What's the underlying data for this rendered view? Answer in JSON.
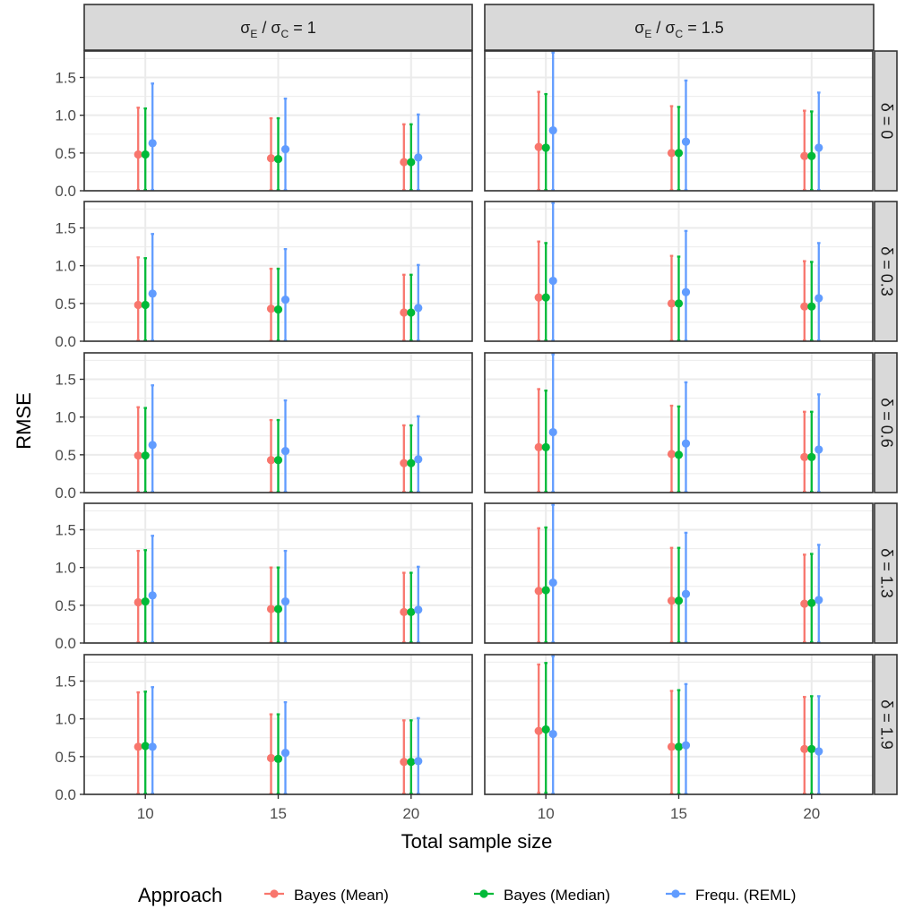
{
  "chart_data": {
    "type": "point",
    "subtype": "faceted point with error bars (mean and range)",
    "ylabel": "RMSE",
    "xlabel": "Total sample size",
    "x_ticks": [
      "10",
      "15",
      "20"
    ],
    "y_ticks": [
      "0.0",
      "0.5",
      "1.0",
      "1.5"
    ],
    "ylim": [
      0,
      1.85
    ],
    "grid": true,
    "legend": {
      "title": "Approach",
      "position": "bottom",
      "entries": [
        {
          "name": "Bayes (Mean)",
          "color": "#F8766D"
        },
        {
          "name": "Bayes (Median)",
          "color": "#00BA38"
        },
        {
          "name": "Frequ. (REML)",
          "color": "#619CFF"
        }
      ]
    },
    "col_facets": [
      {
        "base": "σ",
        "sub1": "E",
        "mid": " / ",
        "sub2": "C",
        "rest": " = 1"
      },
      {
        "base": "σ",
        "sub1": "E",
        "mid": " / ",
        "sub2": "C",
        "rest": " = 1.5"
      }
    ],
    "row_facets": [
      "δ = 0",
      "δ = 0.3",
      "δ = 0.6",
      "δ = 1.3",
      "δ = 1.9"
    ],
    "panels": [
      [
        {
          "series": [
            {
              "name": "Bayes (Mean)",
              "points": [
                {
                  "x": 10,
                  "y": 0.48,
                  "low": 0.01,
                  "high": 1.1
                },
                {
                  "x": 15,
                  "y": 0.43,
                  "low": 0.01,
                  "high": 0.96
                },
                {
                  "x": 20,
                  "y": 0.38,
                  "low": 0.01,
                  "high": 0.88
                }
              ]
            },
            {
              "name": "Bayes (Median)",
              "points": [
                {
                  "x": 10,
                  "y": 0.48,
                  "low": 0.01,
                  "high": 1.09
                },
                {
                  "x": 15,
                  "y": 0.42,
                  "low": 0.01,
                  "high": 0.96
                },
                {
                  "x": 20,
                  "y": 0.38,
                  "low": 0.01,
                  "high": 0.88
                }
              ]
            },
            {
              "name": "Frequ. (REML)",
              "points": [
                {
                  "x": 10,
                  "y": 0.63,
                  "low": 0.01,
                  "high": 1.42
                },
                {
                  "x": 15,
                  "y": 0.55,
                  "low": 0.01,
                  "high": 1.22
                },
                {
                  "x": 20,
                  "y": 0.44,
                  "low": 0.01,
                  "high": 1.01
                }
              ]
            }
          ]
        },
        {
          "series": [
            {
              "name": "Bayes (Mean)",
              "points": [
                {
                  "x": 10,
                  "y": 0.48,
                  "low": 0.01,
                  "high": 1.11
                },
                {
                  "x": 15,
                  "y": 0.43,
                  "low": 0.01,
                  "high": 0.96
                },
                {
                  "x": 20,
                  "y": 0.38,
                  "low": 0.01,
                  "high": 0.88
                }
              ]
            },
            {
              "name": "Bayes (Median)",
              "points": [
                {
                  "x": 10,
                  "y": 0.48,
                  "low": 0.01,
                  "high": 1.1
                },
                {
                  "x": 15,
                  "y": 0.42,
                  "low": 0.01,
                  "high": 0.96
                },
                {
                  "x": 20,
                  "y": 0.38,
                  "low": 0.01,
                  "high": 0.88
                }
              ]
            },
            {
              "name": "Frequ. (REML)",
              "points": [
                {
                  "x": 10,
                  "y": 0.63,
                  "low": 0.01,
                  "high": 1.42
                },
                {
                  "x": 15,
                  "y": 0.55,
                  "low": 0.01,
                  "high": 1.22
                },
                {
                  "x": 20,
                  "y": 0.44,
                  "low": 0.01,
                  "high": 1.01
                }
              ]
            }
          ]
        },
        {
          "series": [
            {
              "name": "Bayes (Mean)",
              "points": [
                {
                  "x": 10,
                  "y": 0.49,
                  "low": 0.01,
                  "high": 1.13
                },
                {
                  "x": 15,
                  "y": 0.43,
                  "low": 0.01,
                  "high": 0.96
                },
                {
                  "x": 20,
                  "y": 0.39,
                  "low": 0.01,
                  "high": 0.89
                }
              ]
            },
            {
              "name": "Bayes (Median)",
              "points": [
                {
                  "x": 10,
                  "y": 0.49,
                  "low": 0.01,
                  "high": 1.12
                },
                {
                  "x": 15,
                  "y": 0.43,
                  "low": 0.01,
                  "high": 0.96
                },
                {
                  "x": 20,
                  "y": 0.39,
                  "low": 0.01,
                  "high": 0.89
                }
              ]
            },
            {
              "name": "Frequ. (REML)",
              "points": [
                {
                  "x": 10,
                  "y": 0.63,
                  "low": 0.01,
                  "high": 1.42
                },
                {
                  "x": 15,
                  "y": 0.55,
                  "low": 0.01,
                  "high": 1.22
                },
                {
                  "x": 20,
                  "y": 0.44,
                  "low": 0.01,
                  "high": 1.01
                }
              ]
            }
          ]
        },
        {
          "series": [
            {
              "name": "Bayes (Mean)",
              "points": [
                {
                  "x": 10,
                  "y": 0.54,
                  "low": 0.01,
                  "high": 1.22
                },
                {
                  "x": 15,
                  "y": 0.45,
                  "low": 0.01,
                  "high": 1.0
                },
                {
                  "x": 20,
                  "y": 0.41,
                  "low": 0.01,
                  "high": 0.93
                }
              ]
            },
            {
              "name": "Bayes (Median)",
              "points": [
                {
                  "x": 10,
                  "y": 0.55,
                  "low": 0.01,
                  "high": 1.23
                },
                {
                  "x": 15,
                  "y": 0.45,
                  "low": 0.01,
                  "high": 1.0
                },
                {
                  "x": 20,
                  "y": 0.41,
                  "low": 0.01,
                  "high": 0.93
                }
              ]
            },
            {
              "name": "Frequ. (REML)",
              "points": [
                {
                  "x": 10,
                  "y": 0.63,
                  "low": 0.01,
                  "high": 1.42
                },
                {
                  "x": 15,
                  "y": 0.55,
                  "low": 0.01,
                  "high": 1.22
                },
                {
                  "x": 20,
                  "y": 0.44,
                  "low": 0.01,
                  "high": 1.01
                }
              ]
            }
          ]
        },
        {
          "series": [
            {
              "name": "Bayes (Mean)",
              "points": [
                {
                  "x": 10,
                  "y": 0.63,
                  "low": 0.01,
                  "high": 1.35
                },
                {
                  "x": 15,
                  "y": 0.48,
                  "low": 0.01,
                  "high": 1.06
                },
                {
                  "x": 20,
                  "y": 0.43,
                  "low": 0.01,
                  "high": 0.98
                }
              ]
            },
            {
              "name": "Bayes (Median)",
              "points": [
                {
                  "x": 10,
                  "y": 0.64,
                  "low": 0.01,
                  "high": 1.36
                },
                {
                  "x": 15,
                  "y": 0.47,
                  "low": 0.01,
                  "high": 1.06
                },
                {
                  "x": 20,
                  "y": 0.43,
                  "low": 0.01,
                  "high": 0.98
                }
              ]
            },
            {
              "name": "Frequ. (REML)",
              "points": [
                {
                  "x": 10,
                  "y": 0.63,
                  "low": 0.01,
                  "high": 1.42
                },
                {
                  "x": 15,
                  "y": 0.55,
                  "low": 0.01,
                  "high": 1.22
                },
                {
                  "x": 20,
                  "y": 0.44,
                  "low": 0.01,
                  "high": 1.01
                }
              ]
            }
          ]
        }
      ],
      [
        {
          "series": [
            {
              "name": "Bayes (Mean)",
              "points": [
                {
                  "x": 10,
                  "y": 0.58,
                  "low": 0.01,
                  "high": 1.31
                },
                {
                  "x": 15,
                  "y": 0.5,
                  "low": 0.01,
                  "high": 1.12
                },
                {
                  "x": 20,
                  "y": 0.46,
                  "low": 0.01,
                  "high": 1.06
                }
              ]
            },
            {
              "name": "Bayes (Median)",
              "points": [
                {
                  "x": 10,
                  "y": 0.57,
                  "low": 0.01,
                  "high": 1.28
                },
                {
                  "x": 15,
                  "y": 0.5,
                  "low": 0.01,
                  "high": 1.11
                },
                {
                  "x": 20,
                  "y": 0.46,
                  "low": 0.01,
                  "high": 1.05
                }
              ]
            },
            {
              "name": "Frequ. (REML)",
              "points": [
                {
                  "x": 10,
                  "y": 0.8,
                  "low": 0.01,
                  "high": 1.83
                },
                {
                  "x": 15,
                  "y": 0.65,
                  "low": 0.01,
                  "high": 1.46
                },
                {
                  "x": 20,
                  "y": 0.57,
                  "low": 0.01,
                  "high": 1.3
                }
              ]
            }
          ]
        },
        {
          "series": [
            {
              "name": "Bayes (Mean)",
              "points": [
                {
                  "x": 10,
                  "y": 0.58,
                  "low": 0.01,
                  "high": 1.32
                },
                {
                  "x": 15,
                  "y": 0.5,
                  "low": 0.01,
                  "high": 1.13
                },
                {
                  "x": 20,
                  "y": 0.46,
                  "low": 0.01,
                  "high": 1.06
                }
              ]
            },
            {
              "name": "Bayes (Median)",
              "points": [
                {
                  "x": 10,
                  "y": 0.58,
                  "low": 0.01,
                  "high": 1.3
                },
                {
                  "x": 15,
                  "y": 0.5,
                  "low": 0.01,
                  "high": 1.12
                },
                {
                  "x": 20,
                  "y": 0.46,
                  "low": 0.01,
                  "high": 1.05
                }
              ]
            },
            {
              "name": "Frequ. (REML)",
              "points": [
                {
                  "x": 10,
                  "y": 0.8,
                  "low": 0.01,
                  "high": 1.83
                },
                {
                  "x": 15,
                  "y": 0.65,
                  "low": 0.01,
                  "high": 1.46
                },
                {
                  "x": 20,
                  "y": 0.57,
                  "low": 0.01,
                  "high": 1.3
                }
              ]
            }
          ]
        },
        {
          "series": [
            {
              "name": "Bayes (Mean)",
              "points": [
                {
                  "x": 10,
                  "y": 0.6,
                  "low": 0.01,
                  "high": 1.37
                },
                {
                  "x": 15,
                  "y": 0.51,
                  "low": 0.01,
                  "high": 1.15
                },
                {
                  "x": 20,
                  "y": 0.47,
                  "low": 0.01,
                  "high": 1.07
                }
              ]
            },
            {
              "name": "Bayes (Median)",
              "points": [
                {
                  "x": 10,
                  "y": 0.6,
                  "low": 0.01,
                  "high": 1.35
                },
                {
                  "x": 15,
                  "y": 0.5,
                  "low": 0.01,
                  "high": 1.14
                },
                {
                  "x": 20,
                  "y": 0.47,
                  "low": 0.01,
                  "high": 1.07
                }
              ]
            },
            {
              "name": "Frequ. (REML)",
              "points": [
                {
                  "x": 10,
                  "y": 0.8,
                  "low": 0.01,
                  "high": 1.83
                },
                {
                  "x": 15,
                  "y": 0.65,
                  "low": 0.01,
                  "high": 1.46
                },
                {
                  "x": 20,
                  "y": 0.57,
                  "low": 0.01,
                  "high": 1.3
                }
              ]
            }
          ]
        },
        {
          "series": [
            {
              "name": "Bayes (Mean)",
              "points": [
                {
                  "x": 10,
                  "y": 0.69,
                  "low": 0.01,
                  "high": 1.52
                },
                {
                  "x": 15,
                  "y": 0.56,
                  "low": 0.01,
                  "high": 1.26
                },
                {
                  "x": 20,
                  "y": 0.52,
                  "low": 0.01,
                  "high": 1.17
                }
              ]
            },
            {
              "name": "Bayes (Median)",
              "points": [
                {
                  "x": 10,
                  "y": 0.7,
                  "low": 0.01,
                  "high": 1.53
                },
                {
                  "x": 15,
                  "y": 0.56,
                  "low": 0.01,
                  "high": 1.26
                },
                {
                  "x": 20,
                  "y": 0.53,
                  "low": 0.01,
                  "high": 1.18
                }
              ]
            },
            {
              "name": "Frequ. (REML)",
              "points": [
                {
                  "x": 10,
                  "y": 0.8,
                  "low": 0.01,
                  "high": 1.83
                },
                {
                  "x": 15,
                  "y": 0.65,
                  "low": 0.01,
                  "high": 1.46
                },
                {
                  "x": 20,
                  "y": 0.57,
                  "low": 0.01,
                  "high": 1.3
                }
              ]
            }
          ]
        },
        {
          "series": [
            {
              "name": "Bayes (Mean)",
              "points": [
                {
                  "x": 10,
                  "y": 0.84,
                  "low": 0.02,
                  "high": 1.72
                },
                {
                  "x": 15,
                  "y": 0.63,
                  "low": 0.01,
                  "high": 1.37
                },
                {
                  "x": 20,
                  "y": 0.6,
                  "low": 0.01,
                  "high": 1.29
                }
              ]
            },
            {
              "name": "Bayes (Median)",
              "points": [
                {
                  "x": 10,
                  "y": 0.86,
                  "low": 0.02,
                  "high": 1.74
                },
                {
                  "x": 15,
                  "y": 0.63,
                  "low": 0.01,
                  "high": 1.38
                },
                {
                  "x": 20,
                  "y": 0.6,
                  "low": 0.01,
                  "high": 1.3
                }
              ]
            },
            {
              "name": "Frequ. (REML)",
              "points": [
                {
                  "x": 10,
                  "y": 0.8,
                  "low": 0.01,
                  "high": 1.83
                },
                {
                  "x": 15,
                  "y": 0.65,
                  "low": 0.01,
                  "high": 1.46
                },
                {
                  "x": 20,
                  "y": 0.57,
                  "low": 0.01,
                  "high": 1.3
                }
              ]
            }
          ]
        }
      ]
    ]
  }
}
